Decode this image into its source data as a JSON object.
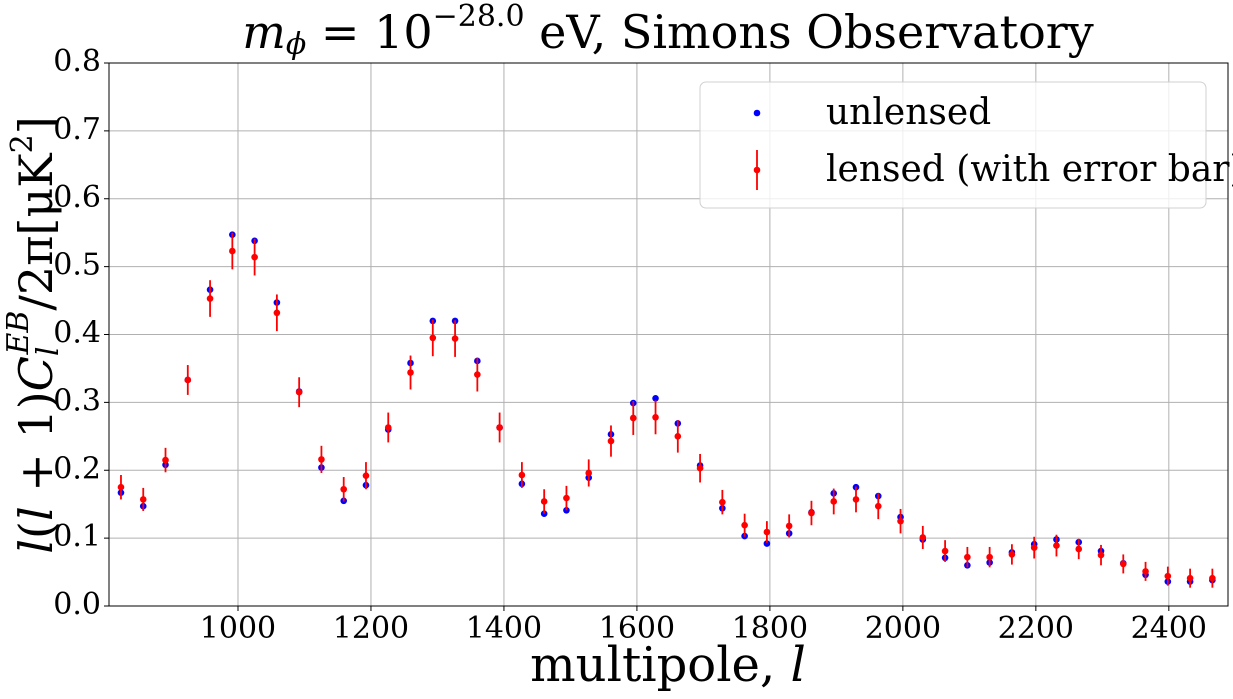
{
  "chart_data": {
    "type": "errorbar_scatter",
    "title_parts": [
      "m",
      "ϕ",
      " = 10",
      "−28.0",
      " eV, Simons Observatory"
    ],
    "xlabel_parts": [
      "multipole, ",
      "l"
    ],
    "ylabel_parts": [
      "l",
      "(",
      "l",
      " + 1)",
      "C",
      "l",
      "EB",
      "/2π[μK",
      "2",
      "]"
    ],
    "x": [
      824,
      857.5,
      891,
      924.5,
      958,
      991.5,
      1025,
      1058.5,
      1092,
      1125.5,
      1159,
      1192.5,
      1226,
      1259.5,
      1293,
      1326.5,
      1360,
      1393.5,
      1427,
      1460.5,
      1494,
      1527.5,
      1561,
      1594.5,
      1628,
      1661.5,
      1695,
      1728.5,
      1762,
      1795.5,
      1829,
      1862.5,
      1896,
      1929.5,
      1963,
      1996.5,
      2030,
      2063.5,
      2097,
      2130.5,
      2164,
      2197.5,
      2231,
      2264.5,
      2298,
      2331.5,
      2365,
      2398.5,
      2432,
      2465.5
    ],
    "series": [
      {
        "name": "unlensed",
        "color": "#0000ff",
        "values": [
          0.167,
          0.147,
          0.208,
          0.333,
          0.466,
          0.547,
          0.538,
          0.447,
          0.316,
          0.204,
          0.155,
          0.178,
          0.26,
          0.358,
          0.42,
          0.42,
          0.361,
          0.263,
          0.18,
          0.136,
          0.141,
          0.189,
          0.253,
          0.299,
          0.306,
          0.269,
          0.207,
          0.144,
          0.103,
          0.092,
          0.107,
          0.138,
          0.166,
          0.175,
          0.162,
          0.131,
          0.098,
          0.071,
          0.06,
          0.064,
          0.079,
          0.091,
          0.098,
          0.094,
          0.081,
          0.063,
          0.046,
          0.036,
          0.036,
          0.038
        ]
      },
      {
        "name": "lensed (with error bar)",
        "color": "#ff0000",
        "values": [
          0.175,
          0.157,
          0.215,
          0.333,
          0.453,
          0.523,
          0.514,
          0.432,
          0.315,
          0.216,
          0.172,
          0.192,
          0.263,
          0.344,
          0.395,
          0.394,
          0.341,
          0.263,
          0.193,
          0.154,
          0.159,
          0.196,
          0.243,
          0.277,
          0.278,
          0.25,
          0.203,
          0.153,
          0.119,
          0.109,
          0.118,
          0.137,
          0.154,
          0.157,
          0.147,
          0.125,
          0.101,
          0.081,
          0.072,
          0.072,
          0.076,
          0.086,
          0.089,
          0.084,
          0.075,
          0.062,
          0.051,
          0.044,
          0.041,
          0.041
        ],
        "errors": [
          0.018,
          0.017,
          0.018,
          0.022,
          0.027,
          0.027,
          0.027,
          0.027,
          0.022,
          0.02,
          0.018,
          0.02,
          0.022,
          0.025,
          0.027,
          0.027,
          0.025,
          0.022,
          0.019,
          0.018,
          0.018,
          0.02,
          0.023,
          0.025,
          0.025,
          0.024,
          0.021,
          0.018,
          0.017,
          0.016,
          0.017,
          0.018,
          0.019,
          0.019,
          0.019,
          0.018,
          0.017,
          0.016,
          0.015,
          0.015,
          0.015,
          0.016,
          0.016,
          0.015,
          0.015,
          0.014,
          0.014,
          0.014,
          0.014,
          0.014
        ]
      }
    ],
    "xlim": [
      806,
      2489
    ],
    "ylim": [
      0,
      0.8
    ],
    "xticks": [
      1000,
      1200,
      1400,
      1600,
      1800,
      2000,
      2200,
      2400
    ],
    "yticks": [
      {
        "value": 0,
        "label": "0.0"
      },
      0.1,
      0.2,
      0.3,
      0.4,
      0.5,
      0.6,
      0.7,
      0.8
    ],
    "grid": true,
    "legend": "upper right"
  }
}
